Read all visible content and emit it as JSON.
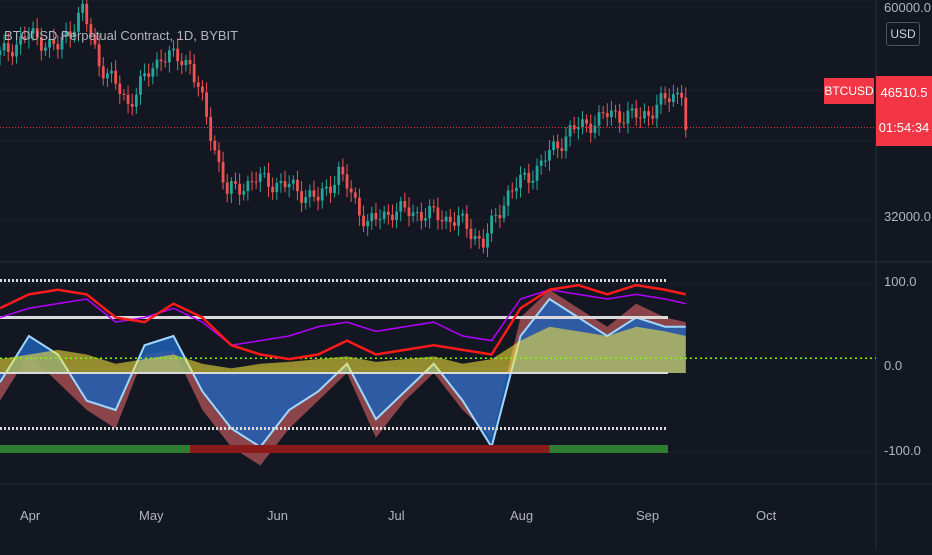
{
  "title": "BTCUSD Perpetual Contract, 1D, BYBIT",
  "currency": "USD",
  "symbol": "BTCUSD",
  "last_price": "46510.5",
  "countdown": "01:54:34",
  "colors": {
    "background": "#131722",
    "up": "#26a69a",
    "down": "#ef5350",
    "price_line": "#f23645",
    "osc_red": "#ff1a1a",
    "osc_purple": "#b400ff",
    "osc_green": "#7cfc00",
    "osc_blue": "#1e5fb4",
    "osc_lightblue": "#9fd7ff",
    "osc_yellow": "#ffeb3b",
    "osc_salmon": "#ef6a6a",
    "band_white": "#d9d9d9",
    "zero_dotted": "#7cfc00"
  },
  "chart_data": [
    {
      "type": "candlestick",
      "title": "BTCUSD Perpetual Contract, 1D, BYBIT",
      "x_labels": [
        "Apr",
        "May",
        "Jun",
        "Jul",
        "Aug",
        "Sep",
        "Oct"
      ],
      "y_tick_labels": [
        "60000.0",
        "32000.0"
      ],
      "approx_close_path": [
        {
          "date": "2021-03-25",
          "close": 57000
        },
        {
          "date": "2021-04-01",
          "close": 60000
        },
        {
          "date": "2021-04-08",
          "close": 58000
        },
        {
          "date": "2021-04-14",
          "close": 63500
        },
        {
          "date": "2021-04-18",
          "close": 56000
        },
        {
          "date": "2021-04-25",
          "close": 50000
        },
        {
          "date": "2021-05-03",
          "close": 57000
        },
        {
          "date": "2021-05-10",
          "close": 56000
        },
        {
          "date": "2021-05-13",
          "close": 50000
        },
        {
          "date": "2021-05-19",
          "close": 37000
        },
        {
          "date": "2021-05-26",
          "close": 39000
        },
        {
          "date": "2021-06-03",
          "close": 38000
        },
        {
          "date": "2021-06-10",
          "close": 36000
        },
        {
          "date": "2021-06-15",
          "close": 40000
        },
        {
          "date": "2021-06-22",
          "close": 32500
        },
        {
          "date": "2021-06-28",
          "close": 34500
        },
        {
          "date": "2021-07-06",
          "close": 34000
        },
        {
          "date": "2021-07-14",
          "close": 33000
        },
        {
          "date": "2021-07-20",
          "close": 29800
        },
        {
          "date": "2021-07-26",
          "close": 37000
        },
        {
          "date": "2021-08-01",
          "close": 40000
        },
        {
          "date": "2021-08-10",
          "close": 46000
        },
        {
          "date": "2021-08-20",
          "close": 48500
        },
        {
          "date": "2021-08-27",
          "close": 48000
        },
        {
          "date": "2021-09-06",
          "close": 52000
        },
        {
          "date": "2021-09-07",
          "close": 46510.5
        }
      ],
      "last_price": 46510.5
    },
    {
      "type": "line",
      "title": "",
      "y_tick_labels": [
        "100.0",
        "0.0",
        "-100.0"
      ],
      "ylim": [
        -120,
        120
      ],
      "levels": [
        100,
        60,
        0,
        -60,
        -100
      ],
      "x": [
        "2021-03-25",
        "2021-04-01",
        "2021-04-08",
        "2021-04-15",
        "2021-04-22",
        "2021-04-29",
        "2021-05-06",
        "2021-05-13",
        "2021-05-20",
        "2021-05-27",
        "2021-06-03",
        "2021-06-10",
        "2021-06-17",
        "2021-06-24",
        "2021-07-01",
        "2021-07-08",
        "2021-07-15",
        "2021-07-22",
        "2021-07-29",
        "2021-08-05",
        "2021-08-12",
        "2021-08-19",
        "2021-08-26",
        "2021-09-02",
        "2021-09-07"
      ],
      "series": [
        {
          "values": [
            70,
            85,
            90,
            85,
            60,
            55,
            75,
            60,
            30,
            20,
            15,
            20,
            35,
            20,
            25,
            30,
            25,
            20,
            70,
            90,
            95,
            85,
            95,
            90,
            85
          ]
        },
        {
          "values": [
            60,
            70,
            75,
            80,
            55,
            60,
            70,
            55,
            30,
            35,
            40,
            50,
            55,
            45,
            50,
            55,
            40,
            35,
            80,
            90,
            85,
            80,
            85,
            80,
            75
          ]
        },
        {
          "values": [
            15,
            20,
            25,
            20,
            10,
            15,
            20,
            10,
            5,
            10,
            12,
            15,
            18,
            12,
            15,
            18,
            10,
            15,
            35,
            50,
            45,
            40,
            50,
            45,
            40
          ]
        },
        {
          "values": [
            -10,
            40,
            20,
            -30,
            -40,
            30,
            40,
            -20,
            -60,
            -80,
            -40,
            -20,
            10,
            -50,
            -20,
            10,
            -30,
            -80,
            40,
            80,
            60,
            40,
            60,
            50,
            50
          ]
        },
        {
          "values": [
            -30,
            20,
            -10,
            -40,
            -60,
            20,
            25,
            -40,
            -80,
            -100,
            -60,
            -30,
            0,
            -70,
            -30,
            0,
            -40,
            -70,
            60,
            90,
            70,
            50,
            75,
            60,
            55
          ]
        }
      ],
      "signal_band": [
        {
          "from": "2021-03-25",
          "to": "2021-05-10",
          "state": "bullish"
        },
        {
          "from": "2021-05-10",
          "to": "2021-08-05",
          "state": "bearish"
        },
        {
          "from": "2021-08-05",
          "to": "2021-09-07",
          "state": "bullish"
        }
      ]
    }
  ]
}
